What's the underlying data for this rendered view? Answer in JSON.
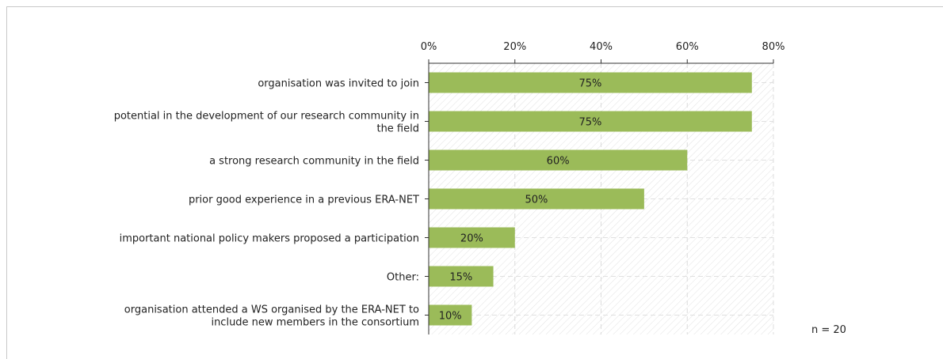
{
  "chart_data": {
    "type": "bar",
    "orientation": "horizontal",
    "categories": [
      [
        "organisation was invited to join"
      ],
      [
        "potential in the development of our research community in",
        "the field"
      ],
      [
        "a strong research community in the field"
      ],
      [
        "prior good experience in a previous ERA-NET"
      ],
      [
        "important national policy makers proposed a participation"
      ],
      [
        "Other:"
      ],
      [
        "organisation attended a WS organised by the ERA-NET to",
        "include new members in the consortium"
      ]
    ],
    "values": [
      75,
      75,
      60,
      50,
      20,
      15,
      10
    ],
    "value_labels": [
      "75%",
      "75%",
      "60%",
      "50%",
      "20%",
      "15%",
      "10%"
    ],
    "x_ticks": [
      0,
      20,
      40,
      60,
      80
    ],
    "x_tick_labels": [
      "0%",
      "20%",
      "40%",
      "60%",
      "80%"
    ],
    "xlim": [
      0,
      80
    ],
    "axis_position": "top",
    "grid": true,
    "bar_color": "#9bbb59",
    "n_label": "n = 20"
  }
}
